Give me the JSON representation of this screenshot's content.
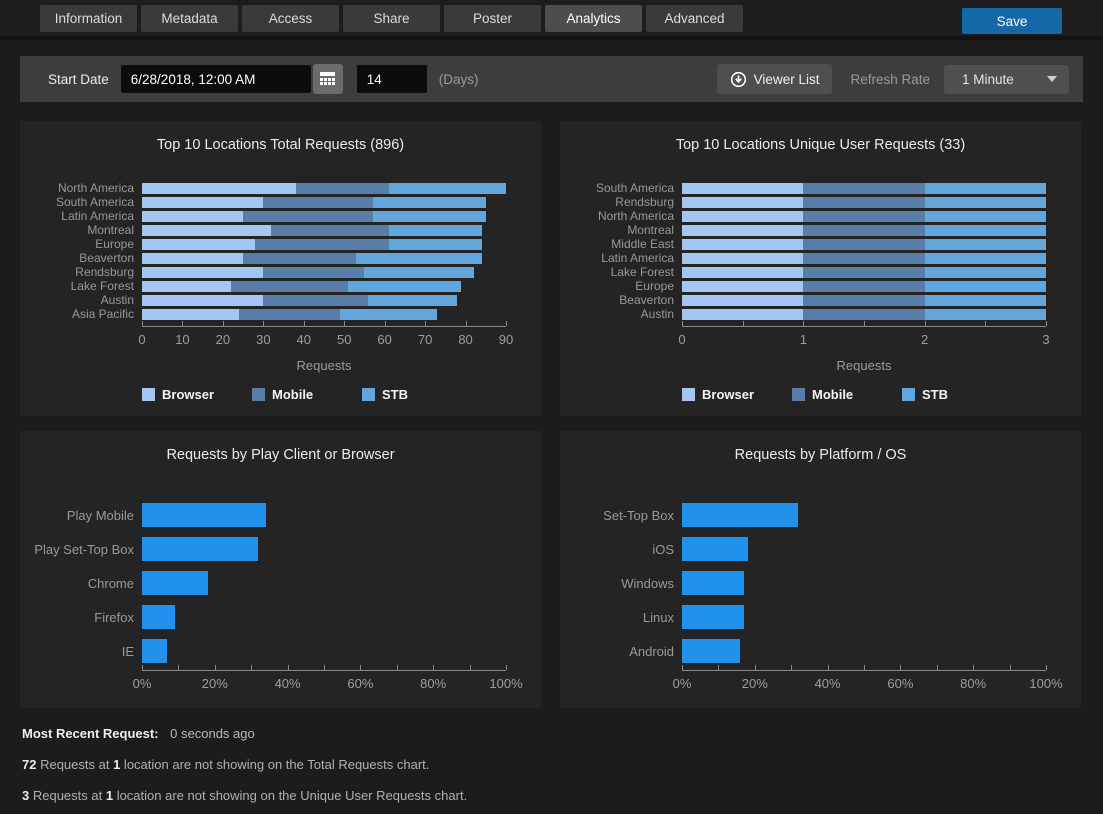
{
  "header": {
    "tabs": [
      "Information",
      "Metadata",
      "Access",
      "Share",
      "Poster",
      "Analytics",
      "Advanced"
    ],
    "active_tab": "Analytics",
    "save_label": "Save"
  },
  "toolbar": {
    "start_date_label": "Start Date",
    "start_date_value": "6/28/2018, 12:00 AM",
    "calendar_icon": "calendar-icon",
    "days_value": "14",
    "days_suffix": "(Days)",
    "viewer_list_label": "Viewer List",
    "viewer_list_icon": "download-circle-icon",
    "refresh_rate_label": "Refresh Rate",
    "refresh_rate_value": "1 Minute",
    "dropdown_caret": "chevron-down-icon"
  },
  "colors": {
    "browser": "#a4c6f2",
    "mobile": "#587ea8",
    "stb": "#63a6db",
    "accent": "#2191ee",
    "save_button": "#1568a8"
  },
  "chart_data": [
    {
      "type": "bar",
      "variant": "stacked-horizontal",
      "title": "Top 10 Locations Total Requests (896)",
      "categories": [
        "North America",
        "South America",
        "Latin America",
        "Montreal",
        "Europe",
        "Beaverton",
        "Rendsburg",
        "Lake Forest",
        "Austin",
        "Asia Pacific"
      ],
      "series": [
        {
          "name": "Browser",
          "color": "browser",
          "values": [
            38,
            30,
            25,
            32,
            28,
            25,
            30,
            22,
            30,
            24
          ]
        },
        {
          "name": "Mobile",
          "color": "mobile",
          "values": [
            23,
            27,
            32,
            29,
            33,
            28,
            25,
            29,
            26,
            25
          ]
        },
        {
          "name": "STB",
          "color": "stb",
          "values": [
            29,
            28,
            28,
            23,
            23,
            31,
            27,
            28,
            22,
            24
          ]
        }
      ],
      "xlabel": "Requests",
      "xlim": [
        0,
        90
      ],
      "ticks": [
        {
          "v": 0,
          "label": "0"
        },
        {
          "v": 10,
          "label": "10"
        },
        {
          "v": 20,
          "label": "20"
        },
        {
          "v": 30,
          "label": "30"
        },
        {
          "v": 40,
          "label": "40"
        },
        {
          "v": 50,
          "label": "50"
        },
        {
          "v": 60,
          "label": "60"
        },
        {
          "v": 70,
          "label": "70"
        },
        {
          "v": 80,
          "label": "80"
        },
        {
          "v": 90,
          "label": "90"
        }
      ],
      "legend": [
        {
          "label": "Browser",
          "color": "browser"
        },
        {
          "label": "Mobile",
          "color": "mobile"
        },
        {
          "label": "STB",
          "color": "stb"
        }
      ],
      "legend_position": "bottom",
      "grid": false
    },
    {
      "type": "bar",
      "variant": "stacked-horizontal",
      "title": "Top 10 Locations Unique User Requests (33)",
      "categories": [
        "South America",
        "Rendsburg",
        "North America",
        "Montreal",
        "Middle East",
        "Latin America",
        "Lake Forest",
        "Europe",
        "Beaverton",
        "Austin"
      ],
      "series": [
        {
          "name": "Browser",
          "color": "browser",
          "values": [
            1,
            1,
            1,
            1,
            1,
            1,
            1,
            1,
            1,
            1
          ]
        },
        {
          "name": "Mobile",
          "color": "mobile",
          "values": [
            1,
            1,
            1,
            1,
            1,
            1,
            1,
            1,
            1,
            1
          ]
        },
        {
          "name": "STB",
          "color": "stb",
          "values": [
            1,
            1,
            1,
            1,
            1,
            1,
            1,
            1,
            1,
            1
          ]
        }
      ],
      "xlabel": "Requests",
      "xlim": [
        0,
        3
      ],
      "ticks": [
        {
          "v": 0,
          "label": "0"
        },
        {
          "v": 0.5,
          "label": ""
        },
        {
          "v": 1,
          "label": "1"
        },
        {
          "v": 1.5,
          "label": ""
        },
        {
          "v": 2,
          "label": "2"
        },
        {
          "v": 2.5,
          "label": ""
        },
        {
          "v": 3,
          "label": "3"
        }
      ],
      "legend": [
        {
          "label": "Browser",
          "color": "browser"
        },
        {
          "label": "Mobile",
          "color": "mobile"
        },
        {
          "label": "STB",
          "color": "stb"
        }
      ],
      "legend_position": "bottom",
      "grid": false
    },
    {
      "type": "bar",
      "variant": "horizontal",
      "title": "Requests by Play Client or Browser",
      "categories": [
        "Play Mobile",
        "Play Set-Top Box",
        "Chrome",
        "Firefox",
        "IE"
      ],
      "values": [
        34,
        32,
        18,
        9,
        7
      ],
      "color": "accent",
      "xlabel": "",
      "xlim": [
        0,
        100
      ],
      "ticks": [
        {
          "v": 0,
          "label": "0%"
        },
        {
          "v": 10,
          "label": ""
        },
        {
          "v": 20,
          "label": "20%"
        },
        {
          "v": 30,
          "label": ""
        },
        {
          "v": 40,
          "label": "40%"
        },
        {
          "v": 50,
          "label": ""
        },
        {
          "v": 60,
          "label": "60%"
        },
        {
          "v": 70,
          "label": ""
        },
        {
          "v": 80,
          "label": "80%"
        },
        {
          "v": 90,
          "label": ""
        },
        {
          "v": 100,
          "label": "100%"
        }
      ],
      "grid": false
    },
    {
      "type": "bar",
      "variant": "horizontal",
      "title": "Requests by Platform / OS",
      "categories": [
        "Set-Top Box",
        "iOS",
        "Windows",
        "Linux",
        "Android"
      ],
      "values": [
        32,
        18,
        17,
        17,
        16
      ],
      "color": "accent",
      "xlabel": "",
      "xlim": [
        0,
        100
      ],
      "ticks": [
        {
          "v": 0,
          "label": "0%"
        },
        {
          "v": 10,
          "label": ""
        },
        {
          "v": 20,
          "label": "20%"
        },
        {
          "v": 30,
          "label": ""
        },
        {
          "v": 40,
          "label": "40%"
        },
        {
          "v": 50,
          "label": ""
        },
        {
          "v": 60,
          "label": "60%"
        },
        {
          "v": 70,
          "label": ""
        },
        {
          "v": 80,
          "label": "80%"
        },
        {
          "v": 90,
          "label": ""
        },
        {
          "v": 100,
          "label": "100%"
        }
      ],
      "grid": false
    }
  ],
  "footer": {
    "recent_label": "Most Recent Request:",
    "recent_value": "0 seconds ago",
    "notes": [
      [
        {
          "t": "72",
          "b": true
        },
        {
          "t": " Requests at ",
          "b": false
        },
        {
          "t": "1",
          "b": true
        },
        {
          "t": " location are not showing on the Total Requests chart.",
          "b": false
        }
      ],
      [
        {
          "t": "3",
          "b": true
        },
        {
          "t": " Requests at ",
          "b": false
        },
        {
          "t": "1",
          "b": true
        },
        {
          "t": " location are not showing on the Unique User Requests chart.",
          "b": false
        }
      ]
    ]
  }
}
